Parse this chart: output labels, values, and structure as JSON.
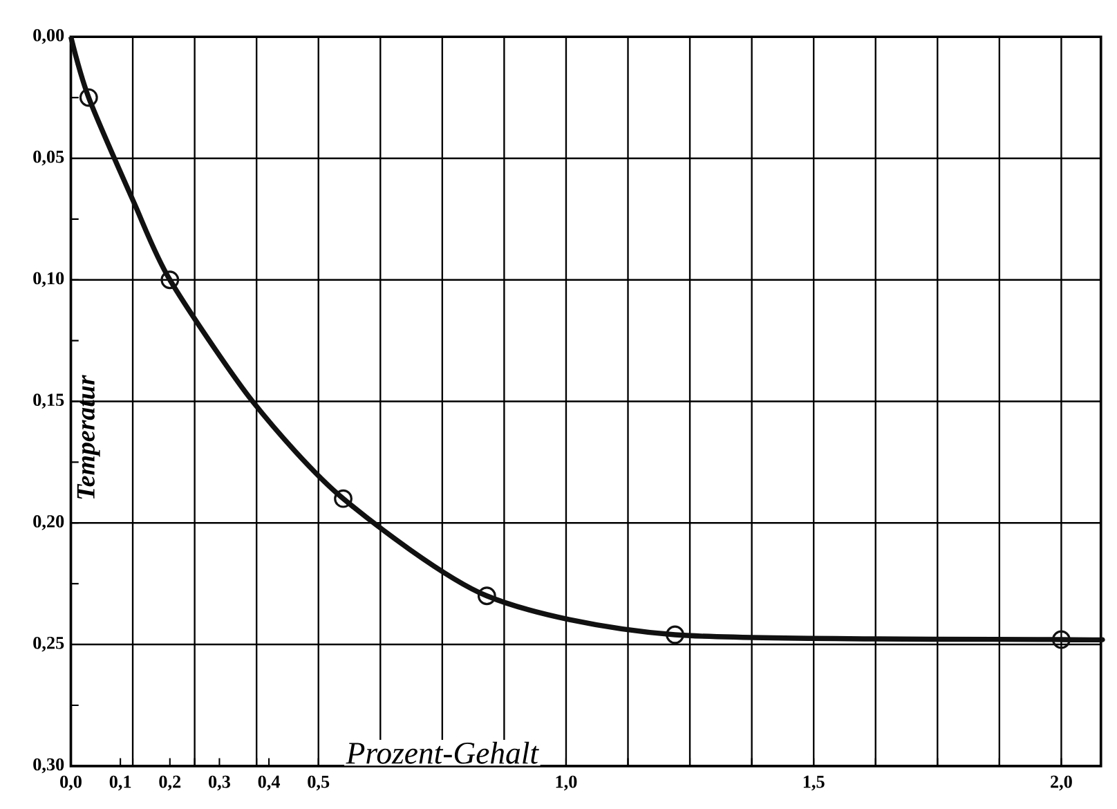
{
  "chart_data": {
    "type": "line",
    "xlabel": "Prozent-Gehalt",
    "ylabel": "Temperatur",
    "series": [
      {
        "color": "#111111",
        "x": [
          0,
          0.036,
          0.127,
          0.2,
          0.367,
          0.55,
          0.84,
          1.22,
          2.0,
          2.08
        ],
        "values": [
          0,
          0.025,
          0.068,
          0.1,
          0.15,
          0.19,
          0.23,
          0.246,
          0.248,
          0.248
        ],
        "marker": "none"
      },
      {
        "type": "scatter",
        "color": "#111111",
        "x": [
          0.036,
          0.2,
          0.55,
          0.84,
          1.22,
          2.0
        ],
        "values": [
          0.025,
          0.1,
          0.19,
          0.23,
          0.246,
          0.248
        ],
        "marker": "circle"
      }
    ],
    "xlim": [
      0,
      2.08
    ],
    "ylim": [
      0.3,
      0.0
    ],
    "xticks": [
      {
        "value": 0,
        "label": "0,0"
      },
      {
        "value": 0.1,
        "label": "0,1"
      },
      {
        "value": 0.125,
        "label": null
      },
      {
        "value": 0.2,
        "label": "0,2"
      },
      {
        "value": 0.25,
        "label": null
      },
      {
        "value": 0.3,
        "label": "0,3"
      },
      {
        "value": 0.375,
        "label": null
      },
      {
        "value": 0.4,
        "label": "0,4"
      },
      {
        "value": 0.5,
        "label": "0,5"
      },
      {
        "value": 0.625,
        "label": null
      },
      {
        "value": 0.75,
        "label": null
      },
      {
        "value": 0.875,
        "label": null
      },
      {
        "value": 1.0,
        "label": "1,0"
      },
      {
        "value": 1.125,
        "label": null
      },
      {
        "value": 1.25,
        "label": null
      },
      {
        "value": 1.375,
        "label": null
      },
      {
        "value": 1.5,
        "label": "1,5"
      },
      {
        "value": 1.625,
        "label": null
      },
      {
        "value": 1.75,
        "label": null
      },
      {
        "value": 1.875,
        "label": null
      },
      {
        "value": 2.0,
        "label": "2,0"
      }
    ],
    "yticks": [
      {
        "value": 0,
        "label": "0,00"
      },
      {
        "value": 0.025,
        "label": null
      },
      {
        "value": 0.05,
        "label": "0,05"
      },
      {
        "value": 0.075,
        "label": null
      },
      {
        "value": 0.1,
        "label": "0,10"
      },
      {
        "value": 0.125,
        "label": null
      },
      {
        "value": 0.15,
        "label": "0,15"
      },
      {
        "value": 0.175,
        "label": null
      },
      {
        "value": 0.2,
        "label": "0,20"
      },
      {
        "value": 0.225,
        "label": null
      },
      {
        "value": 0.25,
        "label": "0,25"
      },
      {
        "value": 0.275,
        "label": null
      },
      {
        "value": 0.3,
        "label": "0,30"
      }
    ],
    "grid": true
  }
}
